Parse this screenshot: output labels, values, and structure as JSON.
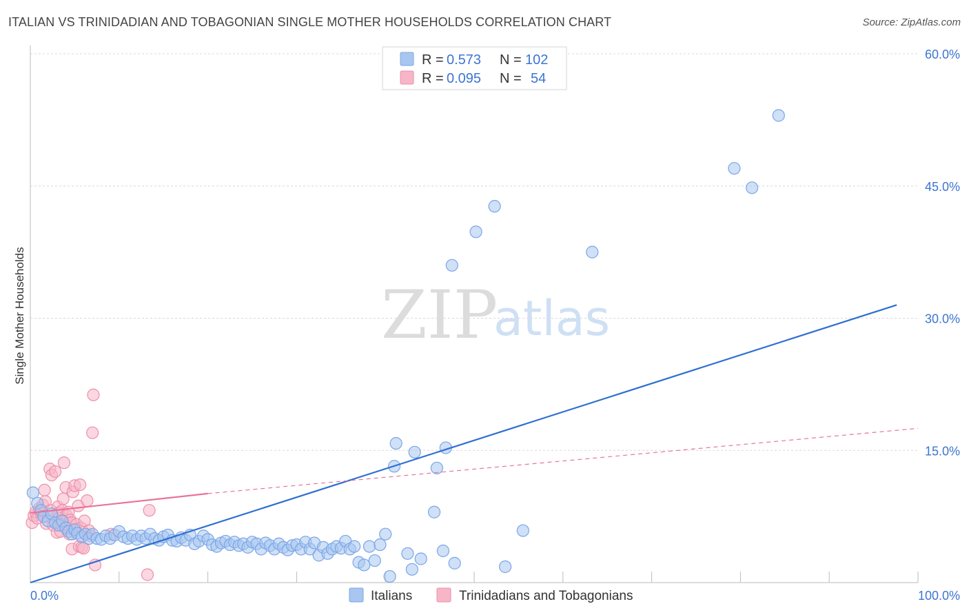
{
  "header": {
    "title": "ITALIAN VS TRINIDADIAN AND TOBAGONIAN SINGLE MOTHER HOUSEHOLDS CORRELATION CHART",
    "source": "Source: ZipAtlas.com"
  },
  "watermark": {
    "part1": "ZIP",
    "part2": "atlas"
  },
  "colors": {
    "italians_fill": "#a8c6f0",
    "italians_stroke": "#7aa5e6",
    "italians_line": "#2e6fd1",
    "trini_fill": "#f6b6c8",
    "trini_stroke": "#ef8eaa",
    "trini_line": "#e8739a",
    "grid": "#d8d8d8",
    "tick_text": "#3d74d0"
  },
  "legend": {
    "rows": [
      {
        "r_label": "R =",
        "r_value": "0.573",
        "n_label": "N =",
        "n_value": "102"
      },
      {
        "r_label": "R =",
        "r_value": "0.095",
        "n_label": "N =",
        "n_value": "54"
      }
    ]
  },
  "bottom_legend": [
    "Italians",
    "Trinidadians and Tobagonians"
  ],
  "chart_data": {
    "type": "scatter",
    "xlabel": "",
    "ylabel": "Single Mother Households",
    "xlim": [
      0,
      100
    ],
    "ylim": [
      0,
      60
    ],
    "x_tick_labels": [
      {
        "value": 0,
        "label": "0.0%"
      },
      {
        "value": 100,
        "label": "100.0%"
      }
    ],
    "y_tick_labels": [
      {
        "value": 15,
        "label": "15.0%"
      },
      {
        "value": 30,
        "label": "30.0%"
      },
      {
        "value": 45,
        "label": "45.0%"
      },
      {
        "value": 60,
        "label": "60.0%"
      }
    ],
    "grid": true,
    "legend_position": "top-center",
    "series": [
      {
        "name": "Italians",
        "r": 0.573,
        "n": 102,
        "trend": [
          [
            0,
            0.0
          ],
          [
            97.6,
            31.5
          ]
        ],
        "points": [
          [
            0.3,
            10.2
          ],
          [
            0.8,
            9.0
          ],
          [
            1.2,
            8.2
          ],
          [
            1.5,
            7.5
          ],
          [
            2.0,
            7.0
          ],
          [
            2.4,
            7.8
          ],
          [
            2.8,
            6.8
          ],
          [
            3.2,
            6.5
          ],
          [
            3.6,
            7.0
          ],
          [
            4.0,
            6.2
          ],
          [
            4.3,
            5.8
          ],
          [
            4.7,
            5.5
          ],
          [
            5.0,
            6.0
          ],
          [
            5.3,
            5.6
          ],
          [
            5.8,
            5.2
          ],
          [
            6.2,
            5.5
          ],
          [
            6.6,
            5.0
          ],
          [
            7.0,
            5.5
          ],
          [
            7.5,
            5.0
          ],
          [
            8.0,
            4.9
          ],
          [
            8.5,
            5.3
          ],
          [
            9.0,
            5.0
          ],
          [
            9.5,
            5.4
          ],
          [
            10.0,
            5.8
          ],
          [
            10.5,
            5.2
          ],
          [
            11.0,
            5.0
          ],
          [
            11.5,
            5.3
          ],
          [
            12.0,
            4.9
          ],
          [
            12.5,
            5.3
          ],
          [
            13.0,
            5.0
          ],
          [
            13.5,
            5.5
          ],
          [
            14.0,
            5.0
          ],
          [
            14.5,
            4.8
          ],
          [
            15.0,
            5.2
          ],
          [
            15.5,
            5.4
          ],
          [
            16.0,
            4.8
          ],
          [
            16.5,
            4.7
          ],
          [
            17.0,
            5.1
          ],
          [
            17.5,
            4.8
          ],
          [
            18.0,
            5.4
          ],
          [
            18.5,
            4.4
          ],
          [
            19.0,
            4.7
          ],
          [
            19.5,
            5.3
          ],
          [
            20.0,
            4.9
          ],
          [
            20.5,
            4.3
          ],
          [
            21.0,
            4.1
          ],
          [
            21.5,
            4.5
          ],
          [
            22.0,
            4.7
          ],
          [
            22.5,
            4.3
          ],
          [
            23.0,
            4.6
          ],
          [
            23.5,
            4.2
          ],
          [
            24.0,
            4.4
          ],
          [
            24.5,
            4.0
          ],
          [
            25.0,
            4.6
          ],
          [
            25.5,
            4.4
          ],
          [
            26.0,
            3.8
          ],
          [
            26.5,
            4.5
          ],
          [
            27.0,
            4.2
          ],
          [
            27.5,
            3.8
          ],
          [
            28.0,
            4.4
          ],
          [
            28.5,
            4.0
          ],
          [
            29.0,
            3.7
          ],
          [
            29.5,
            4.2
          ],
          [
            30.0,
            4.3
          ],
          [
            30.5,
            3.8
          ],
          [
            31.0,
            4.6
          ],
          [
            31.5,
            3.8
          ],
          [
            32.0,
            4.5
          ],
          [
            32.5,
            3.1
          ],
          [
            33.0,
            4.0
          ],
          [
            33.5,
            3.3
          ],
          [
            34.0,
            3.8
          ],
          [
            34.5,
            4.1
          ],
          [
            35.0,
            3.9
          ],
          [
            35.5,
            4.7
          ],
          [
            36.0,
            3.8
          ],
          [
            36.5,
            4.1
          ],
          [
            37.0,
            2.3
          ],
          [
            37.6,
            2.0
          ],
          [
            38.2,
            4.1
          ],
          [
            38.8,
            2.5
          ],
          [
            39.4,
            4.3
          ],
          [
            40.0,
            5.5
          ],
          [
            40.5,
            0.7
          ],
          [
            41.0,
            13.2
          ],
          [
            41.2,
            15.8
          ],
          [
            42.5,
            3.3
          ],
          [
            43.0,
            1.5
          ],
          [
            43.3,
            14.8
          ],
          [
            44.0,
            2.7
          ],
          [
            45.5,
            8.0
          ],
          [
            45.8,
            13.0
          ],
          [
            46.5,
            3.6
          ],
          [
            46.8,
            15.3
          ],
          [
            47.5,
            36.0
          ],
          [
            47.8,
            2.2
          ],
          [
            50.2,
            39.8
          ],
          [
            52.3,
            42.7
          ],
          [
            53.5,
            1.8
          ],
          [
            55.5,
            5.9
          ],
          [
            63.3,
            37.5
          ],
          [
            79.3,
            47.0
          ],
          [
            81.3,
            44.8
          ],
          [
            84.3,
            53.0
          ]
        ]
      },
      {
        "name": "Trinidadians and Tobagonians",
        "r": 0.095,
        "n": 54,
        "trend": [
          [
            0,
            7.9
          ],
          [
            20.0,
            10.1
          ]
        ],
        "trend_extended": [
          [
            20.0,
            10.1
          ],
          [
            100,
            17.5
          ]
        ],
        "points": [
          [
            0.2,
            6.8
          ],
          [
            0.4,
            7.6
          ],
          [
            0.6,
            8.0
          ],
          [
            0.8,
            7.3
          ],
          [
            1.0,
            8.4
          ],
          [
            1.2,
            7.9
          ],
          [
            1.4,
            8.8
          ],
          [
            1.6,
            10.5
          ],
          [
            1.7,
            9.2
          ],
          [
            1.8,
            6.7
          ],
          [
            2.0,
            7.5
          ],
          [
            2.2,
            12.9
          ],
          [
            2.3,
            8.2
          ],
          [
            2.4,
            12.2
          ],
          [
            2.6,
            6.5
          ],
          [
            2.8,
            12.6
          ],
          [
            3.0,
            5.7
          ],
          [
            3.1,
            8.6
          ],
          [
            3.2,
            7.9
          ],
          [
            3.3,
            7.3
          ],
          [
            3.4,
            5.8
          ],
          [
            3.5,
            6.6
          ],
          [
            3.6,
            8.2
          ],
          [
            3.7,
            9.5
          ],
          [
            3.8,
            13.6
          ],
          [
            4.0,
            10.8
          ],
          [
            4.1,
            7.6
          ],
          [
            4.2,
            6.3
          ],
          [
            4.3,
            8.0
          ],
          [
            4.4,
            5.5
          ],
          [
            4.5,
            7.1
          ],
          [
            4.6,
            6.8
          ],
          [
            4.7,
            3.8
          ],
          [
            4.8,
            10.3
          ],
          [
            4.9,
            5.9
          ],
          [
            5.0,
            11.0
          ],
          [
            5.2,
            6.6
          ],
          [
            5.4,
            8.7
          ],
          [
            5.5,
            4.1
          ],
          [
            5.6,
            11.1
          ],
          [
            5.7,
            6.2
          ],
          [
            5.8,
            4.0
          ],
          [
            6.0,
            3.9
          ],
          [
            6.1,
            7.0
          ],
          [
            6.2,
            5.5
          ],
          [
            6.4,
            9.3
          ],
          [
            6.6,
            5.9
          ],
          [
            6.8,
            5.3
          ],
          [
            7.0,
            17.0
          ],
          [
            7.1,
            21.3
          ],
          [
            7.3,
            2.0
          ],
          [
            9.1,
            5.5
          ],
          [
            13.2,
            0.9
          ],
          [
            13.4,
            8.2
          ]
        ]
      }
    ]
  }
}
